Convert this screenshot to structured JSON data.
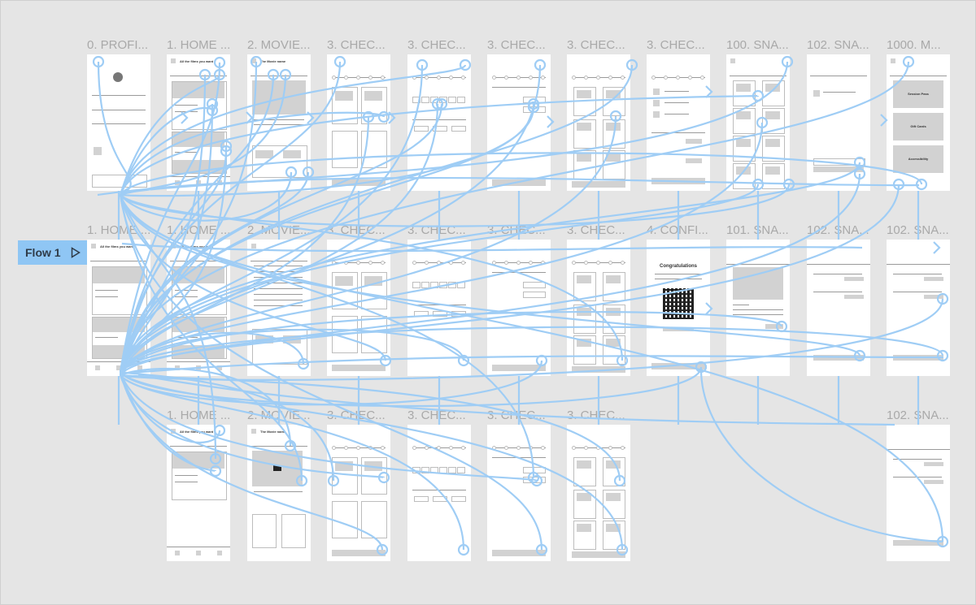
{
  "canvas": {
    "background": "#e5e5e5",
    "connector_color": "#9fcdf5"
  },
  "flow": {
    "label": "Flow 1",
    "icon": "play-icon"
  },
  "frames": [
    {
      "label": "0. PROFI...",
      "row": 0,
      "col": 0,
      "kind": "profile"
    },
    {
      "label": "1. HOME ...",
      "row": 0,
      "col": 1,
      "kind": "home",
      "title": "All the films you want"
    },
    {
      "label": "2. MOVIE...",
      "row": 0,
      "col": 2,
      "kind": "movie",
      "title": "The Movie name"
    },
    {
      "label": "3. CHEC...",
      "row": 0,
      "col": 3,
      "kind": "tickets"
    },
    {
      "label": "3. CHEC...",
      "row": 0,
      "col": 4,
      "kind": "seats"
    },
    {
      "label": "3. CHEC...",
      "row": 0,
      "col": 5,
      "kind": "qty"
    },
    {
      "label": "3. CHEC...",
      "row": 0,
      "col": 6,
      "kind": "snacks"
    },
    {
      "label": "3. CHEC...",
      "row": 0,
      "col": 7,
      "kind": "cart"
    },
    {
      "label": "100. SNA...",
      "row": 0,
      "col": 8,
      "kind": "snackgrid"
    },
    {
      "label": "102. SNA...",
      "row": 0,
      "col": 9,
      "kind": "snackcart"
    },
    {
      "label": "1000. M...",
      "row": 0,
      "col": 10,
      "kind": "menu",
      "items": [
        "Session Pass",
        "Gift Cards",
        "Accessibility"
      ]
    },
    {
      "label": "1. HOME ...",
      "row": 1,
      "col": 0,
      "kind": "home",
      "title": "All the films you want"
    },
    {
      "label": "1. HOME ...",
      "row": 1,
      "col": 1,
      "kind": "home",
      "title": "All the films you want"
    },
    {
      "label": "2. MOVIE...",
      "row": 1,
      "col": 2,
      "kind": "movie2"
    },
    {
      "label": "3. CHEC...",
      "row": 1,
      "col": 3,
      "kind": "tickets"
    },
    {
      "label": "3. CHEC...",
      "row": 1,
      "col": 4,
      "kind": "seats"
    },
    {
      "label": "3. CHEC...",
      "row": 1,
      "col": 5,
      "kind": "qty"
    },
    {
      "label": "3. CHEC...",
      "row": 1,
      "col": 6,
      "kind": "snacks"
    },
    {
      "label": "4. CONFI...",
      "row": 1,
      "col": 7,
      "kind": "confirm",
      "title": "Congratulations"
    },
    {
      "label": "101. SNA...",
      "row": 1,
      "col": 8,
      "kind": "snackdetail"
    },
    {
      "label": "102. SNA...",
      "row": 1,
      "col": 9,
      "kind": "payment"
    },
    {
      "label": "102. SNA...",
      "row": 1,
      "col": 10,
      "kind": "payment"
    },
    {
      "label": "1. HOME ...",
      "row": 2,
      "col": 1,
      "kind": "homeshort",
      "title": "All the films you want"
    },
    {
      "label": "2. MOVIE...",
      "row": 2,
      "col": 2,
      "kind": "video",
      "title": "The Movie name"
    },
    {
      "label": "3. CHEC...",
      "row": 2,
      "col": 3,
      "kind": "tickets"
    },
    {
      "label": "3. CHEC...",
      "row": 2,
      "col": 4,
      "kind": "seats"
    },
    {
      "label": "3. CHEC...",
      "row": 2,
      "col": 5,
      "kind": "qty"
    },
    {
      "label": "3. CHEC...",
      "row": 2,
      "col": 6,
      "kind": "snacks"
    },
    {
      "label": "102. SNA...",
      "row": 2,
      "col": 10,
      "kind": "payment"
    }
  ]
}
